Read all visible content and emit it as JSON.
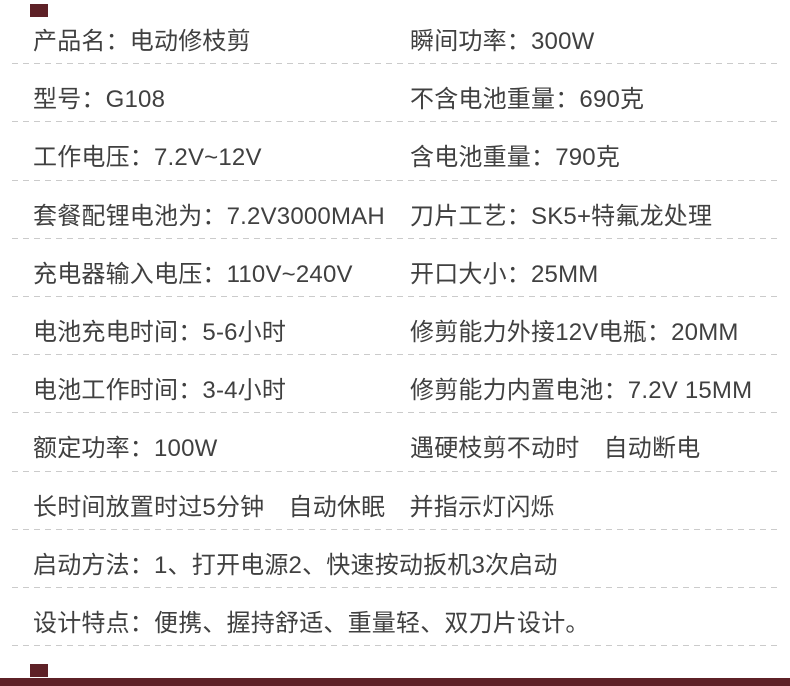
{
  "colors": {
    "background": "#ffffff",
    "text": "#404040",
    "divider": "#cbcbcb",
    "accent": "#5e2127"
  },
  "spec_table": {
    "rows": [
      {
        "cells": [
          "产品名：电动修枝剪",
          "瞬间功率：300W"
        ]
      },
      {
        "cells": [
          "型号：G108",
          "不含电池重量：690克"
        ]
      },
      {
        "cells": [
          "工作电压：7.2V~12V",
          "含电池重量：790克"
        ]
      },
      {
        "cells": [
          "套餐配锂电池为：7.2V3000MAH",
          "刀片工艺：SK5+特氟龙处理"
        ]
      },
      {
        "cells": [
          "充电器输入电压：110V~240V",
          "开口大小：25MM"
        ]
      },
      {
        "cells": [
          "电池充电时间：5-6小时",
          "修剪能力外接12V电瓶：20MM"
        ]
      },
      {
        "cells": [
          "电池工作时间：3-4小时",
          "修剪能力内置电池：7.2V 15MM"
        ]
      },
      {
        "cells": [
          "额定功率：100W",
          "遇硬枝剪不动时　自动断电"
        ]
      },
      {
        "cells": [
          "长时间放置时过5分钟　自动休眠　并指示灯闪烁"
        ]
      },
      {
        "cells": [
          "启动方法：1、打开电源2、快速按动扳机3次启动"
        ]
      },
      {
        "cells": [
          "设计特点：便携、握持舒适、重量轻、双刀片设计。"
        ]
      }
    ]
  }
}
